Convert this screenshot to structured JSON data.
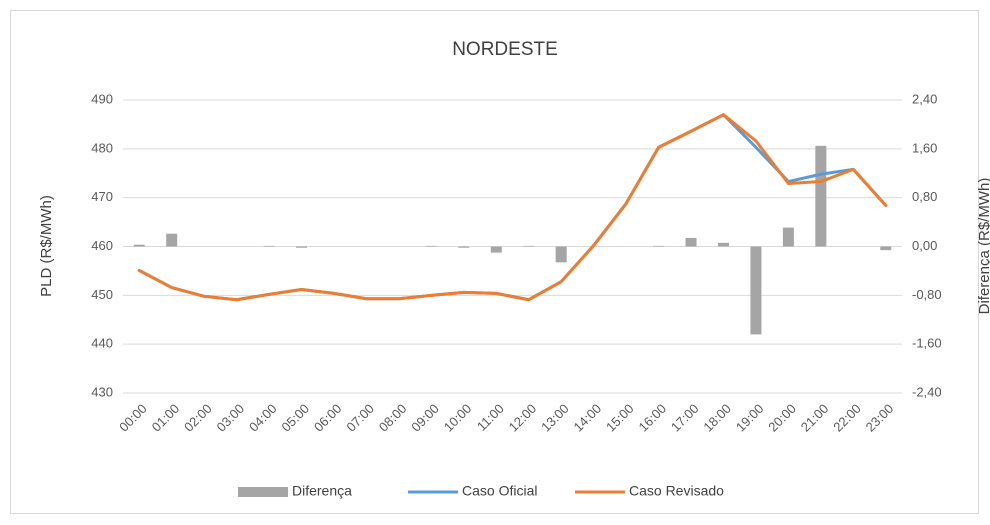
{
  "chart_data": {
    "type": "bar_line",
    "title": "NORDESTE",
    "y_label": "PLD (R$/MWh)",
    "y2_label": "Diferença (R$/MWh)",
    "categories": [
      "00:00",
      "01:00",
      "02:00",
      "03:00",
      "04:00",
      "05:00",
      "06:00",
      "07:00",
      "08:00",
      "09:00",
      "10:00",
      "11:00",
      "12:00",
      "13:00",
      "14:00",
      "15:00",
      "16:00",
      "17:00",
      "18:00",
      "19:00",
      "20:00",
      "21:00",
      "22:00",
      "23:00"
    ],
    "ylim": [
      430,
      490
    ],
    "yticks": [
      430,
      440,
      450,
      460,
      470,
      480,
      490
    ],
    "y2lim": [
      -2.4,
      2.4
    ],
    "y2ticks": [
      {
        "value": -2.4,
        "label": "-2,40"
      },
      {
        "value": -1.6,
        "label": "-1,60"
      },
      {
        "value": -0.8,
        "label": "-0,80"
      },
      {
        "value": 0,
        "label": "0,00"
      },
      {
        "value": 0.8,
        "label": "0,80"
      },
      {
        "value": 1.6,
        "label": "1,60"
      },
      {
        "value": 2.4,
        "label": "2,40"
      }
    ],
    "grid": true,
    "legend": "bottom",
    "series": [
      {
        "name": "Diferença",
        "type": "bar",
        "axis": "y2",
        "color": "#a5a5a5",
        "values": [
          0.03,
          0.21,
          0,
          0,
          0.01,
          -0.02,
          0,
          0,
          0,
          0.01,
          -0.02,
          -0.1,
          0.01,
          -0.26,
          0,
          0,
          0.01,
          0.14,
          0.06,
          -1.44,
          0.31,
          1.65,
          0,
          -0.06
        ]
      },
      {
        "name": "Caso Oficial",
        "type": "line",
        "color": "#5b9bd5",
        "values": [
          455.1,
          451.6,
          449.8,
          449.1,
          450.2,
          451.2,
          450.4,
          449.3,
          449.3,
          450,
          450.6,
          450.4,
          449.1,
          452.8,
          460.2,
          468.8,
          480.3,
          483.6,
          487,
          480.3,
          473.3,
          474.8,
          475.8,
          468.4
        ]
      },
      {
        "name": "Caso Revisado",
        "type": "line",
        "color": "#ed7d31",
        "values": [
          455.1,
          451.6,
          449.8,
          449.1,
          450.2,
          451.2,
          450.4,
          449.3,
          449.3,
          450,
          450.6,
          450.4,
          449.1,
          452.8,
          460.2,
          468.8,
          480.3,
          483.6,
          487,
          481.6,
          472.9,
          473.3,
          475.8,
          468.4
        ]
      }
    ]
  }
}
